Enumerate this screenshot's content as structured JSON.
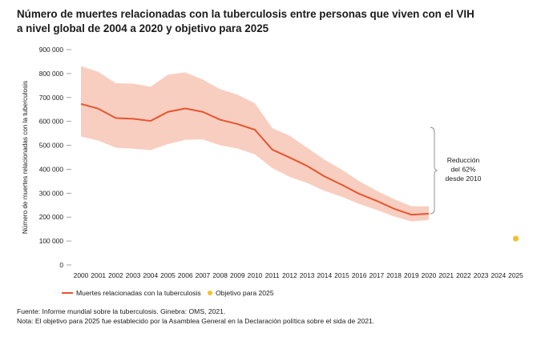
{
  "title_lines": [
    "Número de muertes relacionadas con la tuberculosis entre personas que viven con el VIH",
    "a nivel global de 2004 a 2020 y objetivo para 2025"
  ],
  "notes": {
    "source": "Fuente: Informe mundial sobre la tuberculosis. Ginebra: OMS, 2021.",
    "note": "Nota: El objetivo para 2025 fue establecido por la Asamblea General en la Declaración política sobre el sida de 2021."
  },
  "colors": {
    "line": "#e8542e",
    "band": "#f7c6b5",
    "target": "#f2c12e",
    "axis": "#888888",
    "bracket": "#888888"
  },
  "chart_data": {
    "type": "line",
    "title": "Número de muertes relacionadas con la tuberculosis entre personas que viven con el VIH a nivel global de 2004 a 2020 y objetivo para 2025",
    "xlabel": "",
    "ylabel": "Número de muertes relacionadas con la tuberculosis",
    "ylim": [
      0,
      900000
    ],
    "yticks": [
      0,
      100000,
      200000,
      300000,
      400000,
      500000,
      600000,
      700000,
      800000,
      900000
    ],
    "ytick_labels": [
      "0",
      "100 000",
      "200 000",
      "300 000",
      "400 000",
      "500 000",
      "600 000",
      "700 000",
      "800 000",
      "900 000"
    ],
    "categories": [
      "2000",
      "2001",
      "2002",
      "2003",
      "2004",
      "2005",
      "2006",
      "2007",
      "2008",
      "2009",
      "2010",
      "2011",
      "2012",
      "2013",
      "2014",
      "2015",
      "2016",
      "2017",
      "2018",
      "2019",
      "2020",
      "2021",
      "2022",
      "2023",
      "2024",
      "2025"
    ],
    "series": [
      {
        "name": "Muertes relacionadas con la tuberculosis",
        "x": [
          "2000",
          "2001",
          "2002",
          "2003",
          "2004",
          "2005",
          "2006",
          "2007",
          "2008",
          "2009",
          "2010",
          "2011",
          "2012",
          "2013",
          "2014",
          "2015",
          "2016",
          "2017",
          "2018",
          "2019",
          "2020"
        ],
        "values": [
          673000,
          653000,
          614000,
          611000,
          602000,
          640000,
          654000,
          640000,
          607000,
          589000,
          565000,
          482000,
          449000,
          414000,
          370000,
          335000,
          297000,
          268000,
          235000,
          210000,
          214000
        ],
        "lower": [
          537000,
          520000,
          490000,
          486000,
          480000,
          505000,
          523000,
          525000,
          500000,
          487000,
          462000,
          405000,
          368000,
          343000,
          310000,
          285000,
          255000,
          230000,
          203000,
          182000,
          188000
        ],
        "upper": [
          831000,
          807000,
          760000,
          758000,
          745000,
          795000,
          805000,
          775000,
          735000,
          712000,
          676000,
          572000,
          540000,
          490000,
          440000,
          398000,
          350000,
          310000,
          275000,
          245000,
          245000
        ]
      },
      {
        "name": "Objetivo para 2025",
        "x": [
          "2025"
        ],
        "values": [
          110000
        ]
      }
    ],
    "legend": [
      "Muertes relacionadas con la tuberculosis",
      "Objetivo para 2025"
    ],
    "legend_position": "bottom-left",
    "annotation": {
      "lines": [
        "Reducción",
        "del 62%",
        "desde 2010"
      ],
      "span_from": 565000,
      "span_to": 214000
    }
  }
}
